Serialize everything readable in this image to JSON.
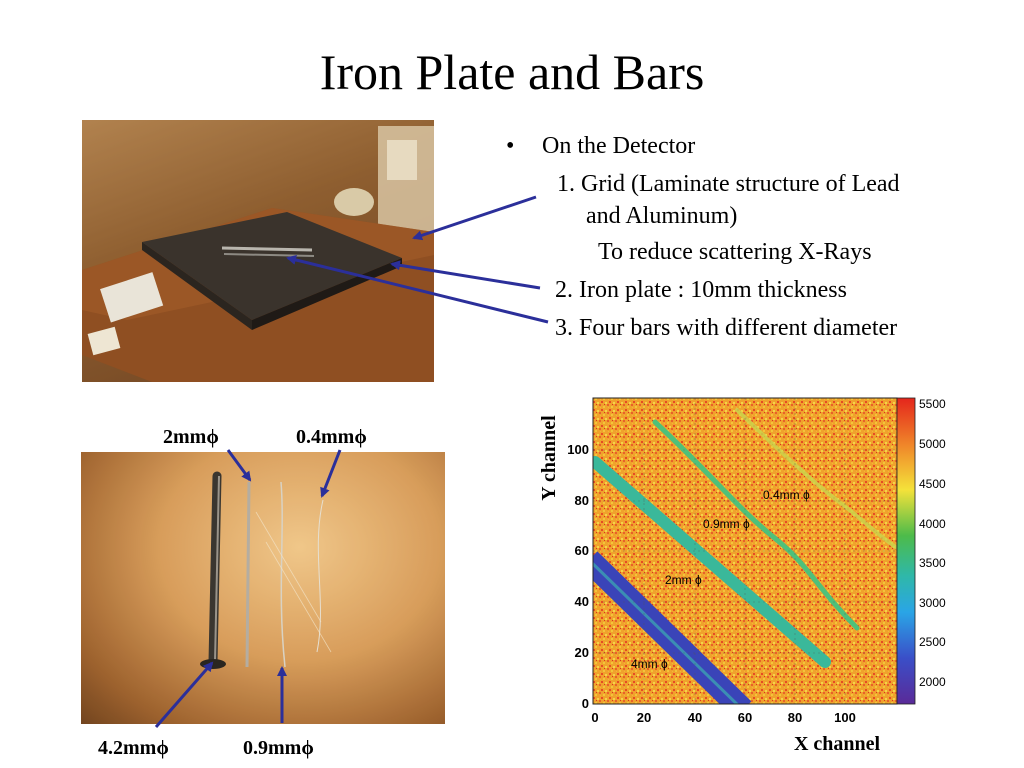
{
  "slide": {
    "title": "Iron Plate and Bars",
    "bullet_marker": "•",
    "bullet_main": "On the Detector",
    "item1_line1": "1. Grid (Laminate structure of Lead",
    "item1_line2": "and Aluminum)",
    "item1_note": "To reduce scattering X-Rays",
    "item2": "2. Iron plate : 10mm thickness",
    "item3": "3. Four bars  with different diameter"
  },
  "bar_labels": {
    "top_left": "2mmϕ",
    "top_right": "0.4mmϕ",
    "bottom_left": "4.2mmϕ",
    "bottom_right": "0.9mmϕ"
  },
  "heatmap": {
    "x_label": "X channel",
    "y_label": "Y channel",
    "x_ticks": [
      "0",
      "20",
      "40",
      "60",
      "80",
      "100"
    ],
    "y_ticks": [
      "0",
      "20",
      "40",
      "60",
      "80",
      "100"
    ],
    "colorbar_ticks": [
      "5500",
      "5000",
      "4500",
      "4000",
      "3500",
      "3000",
      "2500",
      "2000"
    ],
    "annotations": {
      "bar_04": "0.4mm ϕ",
      "bar_09": "0.9mm ϕ",
      "bar_2": "2mm ϕ",
      "bar_4": "4mm ϕ"
    }
  },
  "colors": {
    "arrow": "#2b2f9a",
    "heat_background": "#f0a22c",
    "heat_hot": "#e23a1e"
  }
}
